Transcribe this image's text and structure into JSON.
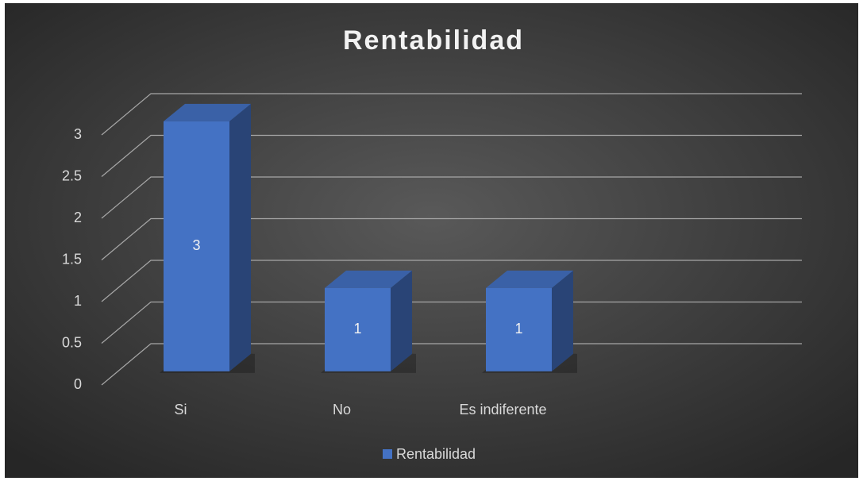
{
  "chart_data": {
    "type": "bar",
    "title": "Rentabilidad",
    "categories": [
      "Si",
      "No",
      "Es indiferente"
    ],
    "series": [
      {
        "name": "Rentabilidad",
        "color": "#4472c4",
        "values": [
          3,
          1,
          1
        ]
      }
    ],
    "ylim": [
      0,
      3
    ],
    "yticks": [
      0,
      0.5,
      1,
      1.5,
      2,
      2.5,
      3
    ],
    "grid": true,
    "legend": "bottom"
  }
}
